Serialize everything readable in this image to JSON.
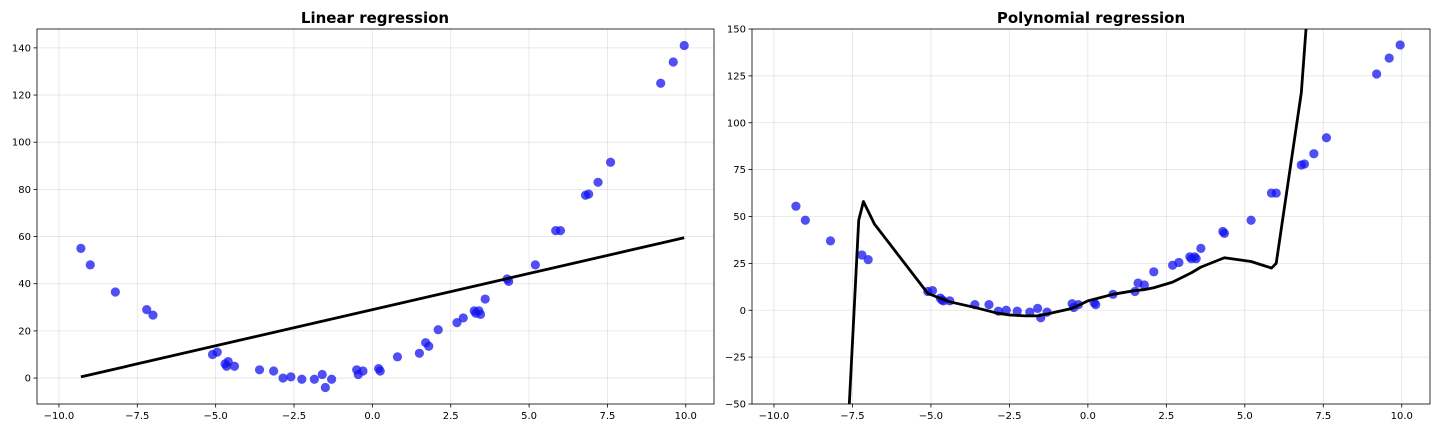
{
  "colors": {
    "points": "#1414f0",
    "line": "#000000"
  },
  "chart_data": [
    {
      "type": "scatter",
      "title": "Linear regression",
      "xlabel": "",
      "ylabel": "",
      "xlim": [
        -10.7,
        10.9
      ],
      "ylim": [
        -11,
        148
      ],
      "xticks": [
        -10.0,
        -7.5,
        -5.0,
        -2.5,
        0.0,
        2.5,
        5.0,
        7.5,
        10.0
      ],
      "xtick_labels": [
        "−10.0",
        "−7.5",
        "−5.0",
        "−2.5",
        "0.0",
        "2.5",
        "5.0",
        "7.5",
        "10.0"
      ],
      "yticks": [
        0,
        20,
        40,
        60,
        80,
        100,
        120,
        140
      ],
      "ytick_labels": [
        "0",
        "20",
        "40",
        "60",
        "80",
        "100",
        "120",
        "140"
      ],
      "grid": true,
      "series": [
        {
          "kind": "points",
          "x": [
            -9.3,
            -9.0,
            -8.2,
            -7.2,
            -7.0,
            -5.1,
            -4.95,
            -4.7,
            -4.6,
            -4.65,
            -4.4,
            -3.6,
            -3.15,
            -2.85,
            -2.6,
            -2.25,
            -1.85,
            -1.6,
            -1.5,
            -1.3,
            -0.5,
            -0.45,
            -0.3,
            0.2,
            0.25,
            0.8,
            1.5,
            1.7,
            1.8,
            2.1,
            2.7,
            2.9,
            3.25,
            3.3,
            3.4,
            3.45,
            3.6,
            4.3,
            4.35,
            5.2,
            5.85,
            6.0,
            6.8,
            6.9,
            7.2,
            7.6,
            9.2,
            9.6,
            9.95
          ],
          "y": [
            55,
            48,
            36.5,
            29,
            26.7,
            10,
            11,
            6,
            7,
            5,
            5,
            3.5,
            3,
            0,
            0.5,
            -0.5,
            -0.5,
            1.5,
            -4,
            -0.5,
            3.5,
            1.5,
            3,
            4,
            3,
            9,
            10.5,
            15,
            13.5,
            20.5,
            23.5,
            25.5,
            28.5,
            27.5,
            28.5,
            27,
            33.5,
            42,
            41,
            48,
            62.5,
            62.5,
            77.5,
            78,
            83,
            91.5,
            125,
            134,
            141
          ]
        },
        {
          "kind": "line",
          "x": [
            -9.3,
            9.95
          ],
          "y": [
            0.5,
            59.5
          ]
        }
      ]
    },
    {
      "type": "scatter",
      "title": "Polynomial regression",
      "xlabel": "",
      "ylabel": "",
      "xlim": [
        -10.7,
        10.9
      ],
      "ylim": [
        -50,
        150
      ],
      "xticks": [
        -10.0,
        -7.5,
        -5.0,
        -2.5,
        0.0,
        2.5,
        5.0,
        7.5,
        10.0
      ],
      "xtick_labels": [
        "−10.0",
        "−7.5",
        "−5.0",
        "−2.5",
        "0.0",
        "2.5",
        "5.0",
        "7.5",
        "10.0"
      ],
      "yticks": [
        -50,
        -25,
        0,
        25,
        50,
        75,
        100,
        125,
        150
      ],
      "ytick_labels": [
        "−50",
        "−25",
        "0",
        "25",
        "50",
        "75",
        "100",
        "125",
        "150"
      ],
      "grid": true,
      "series": [
        {
          "kind": "points",
          "x": [
            -9.3,
            -9.0,
            -8.2,
            -7.2,
            -7.0,
            -5.1,
            -4.95,
            -4.7,
            -4.6,
            -4.65,
            -4.4,
            -3.6,
            -3.15,
            -2.85,
            -2.6,
            -2.25,
            -1.85,
            -1.6,
            -1.5,
            -1.3,
            -0.5,
            -0.45,
            -0.3,
            0.2,
            0.25,
            0.8,
            1.5,
            1.6,
            1.8,
            2.1,
            2.7,
            2.9,
            3.25,
            3.3,
            3.4,
            3.45,
            3.6,
            4.3,
            4.35,
            5.2,
            5.85,
            6.0,
            6.8,
            6.9,
            7.2,
            7.6,
            9.2,
            9.6,
            9.95
          ],
          "y": [
            55.5,
            48,
            37,
            29.5,
            27,
            10,
            10.5,
            6.5,
            5,
            5.5,
            5,
            3,
            3,
            -0.5,
            0,
            -0.5,
            -1,
            1,
            -4,
            -1,
            3.5,
            1.5,
            3,
            4,
            3,
            8.5,
            10,
            14.5,
            13.5,
            20.5,
            24,
            25.5,
            28.5,
            27.5,
            28.5,
            27.5,
            33,
            42,
            41,
            48,
            62.5,
            62.5,
            77.5,
            78,
            83.5,
            92,
            126,
            134.5,
            141.5
          ]
        },
        {
          "kind": "line",
          "x": [
            -7.6,
            -7.3,
            -7.15,
            -6.8,
            -5.1,
            -4.65,
            -4.4,
            -3.6,
            -2.9,
            -2.5,
            -2.0,
            -1.6,
            -1.3,
            -0.5,
            0.0,
            0.8,
            1.5,
            1.8,
            2.1,
            2.7,
            3.3,
            3.6,
            4.35,
            5.2,
            5.85,
            6.0,
            6.8,
            6.95
          ],
          "y": [
            -50,
            48,
            58,
            46,
            9,
            6,
            4.5,
            1.5,
            -1.5,
            -2.5,
            -3,
            -3,
            -2,
            1,
            5,
            8.5,
            10.5,
            11,
            12,
            15,
            20,
            23,
            28,
            26,
            22.5,
            25,
            116,
            150
          ]
        }
      ]
    }
  ]
}
